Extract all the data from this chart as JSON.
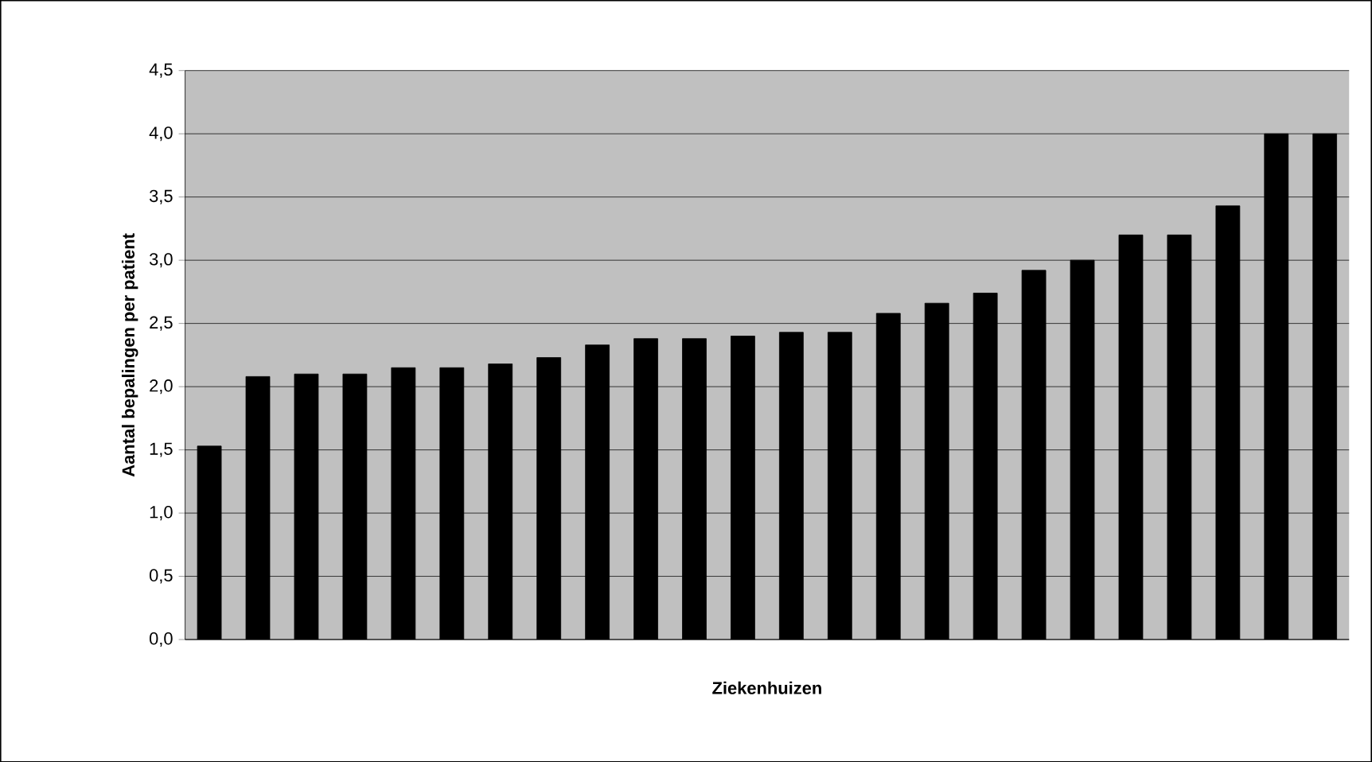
{
  "chart_data": {
    "type": "bar",
    "xlabel": "Ziekenhuizen",
    "ylabel": "Aantal bepalingen per patient",
    "categories": [
      null,
      null,
      null,
      null,
      null,
      null,
      null,
      null,
      null,
      null,
      null,
      null,
      null,
      null,
      null,
      null,
      null,
      null,
      null,
      null,
      null,
      null,
      null,
      null
    ],
    "values": [
      1.53,
      2.08,
      2.1,
      2.1,
      2.15,
      2.15,
      2.18,
      2.23,
      2.33,
      2.38,
      2.38,
      2.4,
      2.43,
      2.43,
      2.58,
      2.66,
      2.74,
      2.92,
      3.0,
      3.2,
      3.2,
      3.43,
      4.0,
      4.0
    ],
    "color": "#000000",
    "ylim": [
      0,
      4.5
    ],
    "yticks": [
      {
        "value": 0,
        "label": "0,0"
      },
      {
        "value": 0.5,
        "label": "0,5"
      },
      {
        "value": 1,
        "label": "1,0"
      },
      {
        "value": 1.5,
        "label": "1,5"
      },
      {
        "value": 2,
        "label": "2,0"
      },
      {
        "value": 2.5,
        "label": "2,5"
      },
      {
        "value": 3,
        "label": "3,0"
      },
      {
        "value": 3.5,
        "label": "3,5"
      },
      {
        "value": 4,
        "label": "4,0"
      },
      {
        "value": 4.5,
        "label": "4,5"
      }
    ],
    "grid": "y"
  }
}
